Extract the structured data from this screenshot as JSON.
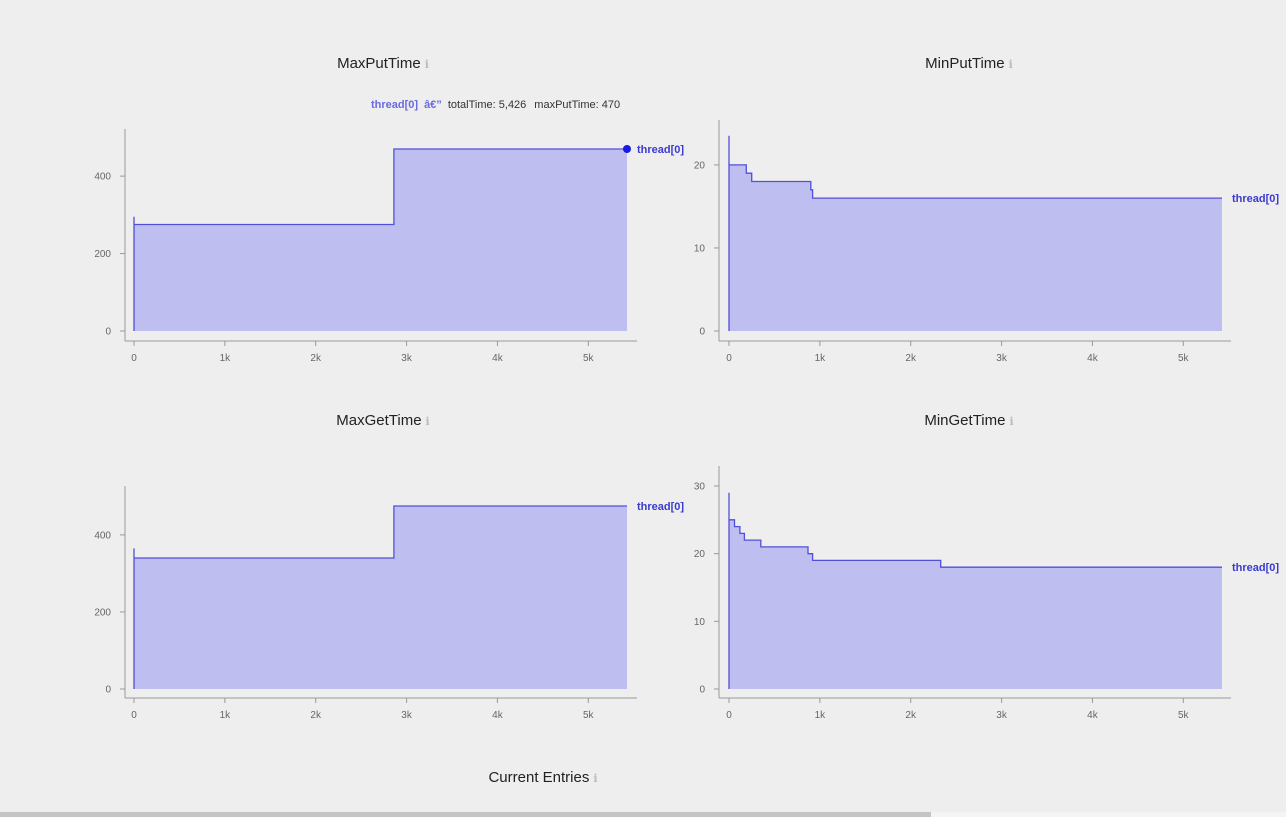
{
  "charts": [
    {
      "id": "maxput",
      "title": "MaxPutTime",
      "info_icon": "ℹ",
      "tooltip": {
        "series": "thread[0]",
        "separator": "â€”",
        "items": [
          {
            "key": "totalTime",
            "value": "5,426"
          },
          {
            "key": "maxPutTime",
            "value": "470"
          }
        ]
      },
      "highlight_point": {
        "x": 5426,
        "y": 470
      }
    },
    {
      "id": "minput",
      "title": "MinPutTime",
      "info_icon": "ℹ"
    },
    {
      "id": "maxget",
      "title": "MaxGetTime",
      "info_icon": "ℹ"
    },
    {
      "id": "minget",
      "title": "MinGetTime",
      "info_icon": "ℹ"
    }
  ],
  "bottom_section": {
    "title": "Current Entries",
    "info_icon": "ℹ"
  },
  "colors": {
    "line": "#5050d8",
    "fill": "#bebef0",
    "axis": "#999999",
    "highlight": "#1a1ae0"
  },
  "chart_data": [
    {
      "type": "area",
      "title": "MaxPutTime",
      "xlim": [
        0,
        5426
      ],
      "ylim": [
        0,
        470
      ],
      "x_ticks": [
        {
          "v": 0,
          "label": "0"
        },
        {
          "v": 1000,
          "label": "1k"
        },
        {
          "v": 2000,
          "label": "2k"
        },
        {
          "v": 3000,
          "label": "3k"
        },
        {
          "v": 4000,
          "label": "4k"
        },
        {
          "v": 5000,
          "label": "5k"
        }
      ],
      "y_ticks": [
        {
          "v": 0,
          "label": "0"
        },
        {
          "v": 200,
          "label": "200"
        },
        {
          "v": 400,
          "label": "400"
        }
      ],
      "series": [
        {
          "name": "thread[0]",
          "step": true,
          "x": [
            0,
            0,
            0,
            2860,
            2860,
            5426
          ],
          "y": [
            0,
            295,
            275,
            275,
            470,
            470
          ]
        }
      ]
    },
    {
      "type": "area",
      "title": "MinPutTime",
      "xlim": [
        0,
        5426
      ],
      "ylim": [
        0,
        23
      ],
      "x_ticks": [
        {
          "v": 0,
          "label": "0"
        },
        {
          "v": 1000,
          "label": "1k"
        },
        {
          "v": 2000,
          "label": "2k"
        },
        {
          "v": 3000,
          "label": "3k"
        },
        {
          "v": 4000,
          "label": "4k"
        },
        {
          "v": 5000,
          "label": "5k"
        }
      ],
      "y_ticks": [
        {
          "v": 0,
          "label": "0"
        },
        {
          "v": 10,
          "label": "10"
        },
        {
          "v": 20,
          "label": "20"
        }
      ],
      "series": [
        {
          "name": "thread[0]",
          "step": true,
          "x": [
            0,
            0,
            0,
            190,
            250,
            900,
            920,
            5426
          ],
          "y": [
            0,
            23.5,
            20,
            19,
            18,
            17,
            16,
            16
          ]
        }
      ]
    },
    {
      "type": "area",
      "title": "MaxGetTime",
      "xlim": [
        0,
        5426
      ],
      "ylim": [
        0,
        475
      ],
      "x_ticks": [
        {
          "v": 0,
          "label": "0"
        },
        {
          "v": 1000,
          "label": "1k"
        },
        {
          "v": 2000,
          "label": "2k"
        },
        {
          "v": 3000,
          "label": "3k"
        },
        {
          "v": 4000,
          "label": "4k"
        },
        {
          "v": 5000,
          "label": "5k"
        }
      ],
      "y_ticks": [
        {
          "v": 0,
          "label": "0"
        },
        {
          "v": 200,
          "label": "200"
        },
        {
          "v": 400,
          "label": "400"
        }
      ],
      "series": [
        {
          "name": "thread[0]",
          "step": true,
          "x": [
            0,
            0,
            0,
            2860,
            2860,
            5426
          ],
          "y": [
            0,
            365,
            340,
            340,
            475,
            475
          ]
        }
      ]
    },
    {
      "type": "area",
      "title": "MinGetTime",
      "xlim": [
        0,
        5426
      ],
      "ylim": [
        0,
        30
      ],
      "x_ticks": [
        {
          "v": 0,
          "label": "0"
        },
        {
          "v": 1000,
          "label": "1k"
        },
        {
          "v": 2000,
          "label": "2k"
        },
        {
          "v": 3000,
          "label": "3k"
        },
        {
          "v": 4000,
          "label": "4k"
        },
        {
          "v": 5000,
          "label": "5k"
        }
      ],
      "y_ticks": [
        {
          "v": 0,
          "label": "0"
        },
        {
          "v": 10,
          "label": "10"
        },
        {
          "v": 20,
          "label": "20"
        },
        {
          "v": 30,
          "label": "30"
        }
      ],
      "series": [
        {
          "name": "thread[0]",
          "step": true,
          "x": [
            0,
            0,
            0,
            60,
            120,
            170,
            350,
            870,
            920,
            2330,
            5426
          ],
          "y": [
            0,
            29,
            25,
            24,
            23,
            22,
            21,
            20,
            19,
            18,
            18
          ]
        }
      ]
    }
  ]
}
